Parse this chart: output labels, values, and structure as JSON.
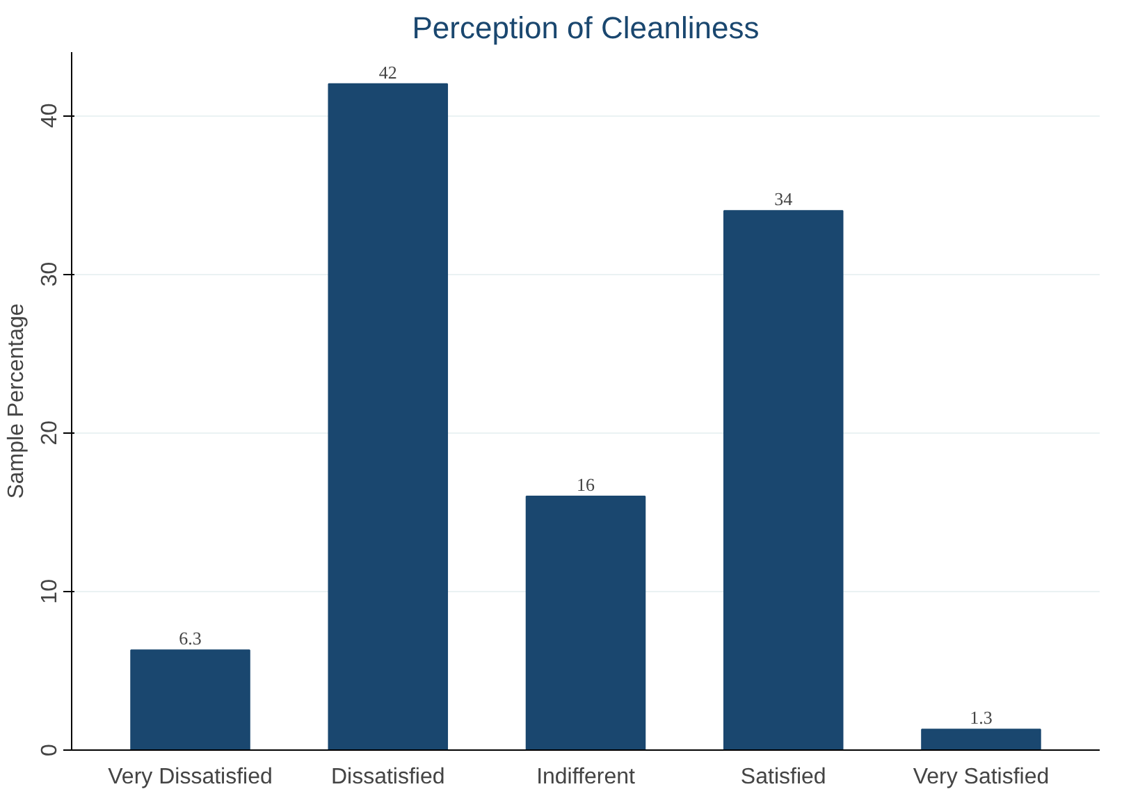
{
  "chart_data": {
    "type": "bar",
    "title": "Perception of Cleanliness",
    "ylabel": "Sample Percentage",
    "categories": [
      "Very Dissatisfied",
      "Dissatisfied",
      "Indifferent",
      "Satisfied",
      "Very Satisfied"
    ],
    "values": [
      6.3,
      42,
      16,
      34,
      1.3
    ],
    "color": "#1a476f",
    "ylim": [
      0,
      44
    ],
    "yticks": [
      0,
      10,
      20,
      30,
      40
    ],
    "grid": "y",
    "data_labels": true
  }
}
